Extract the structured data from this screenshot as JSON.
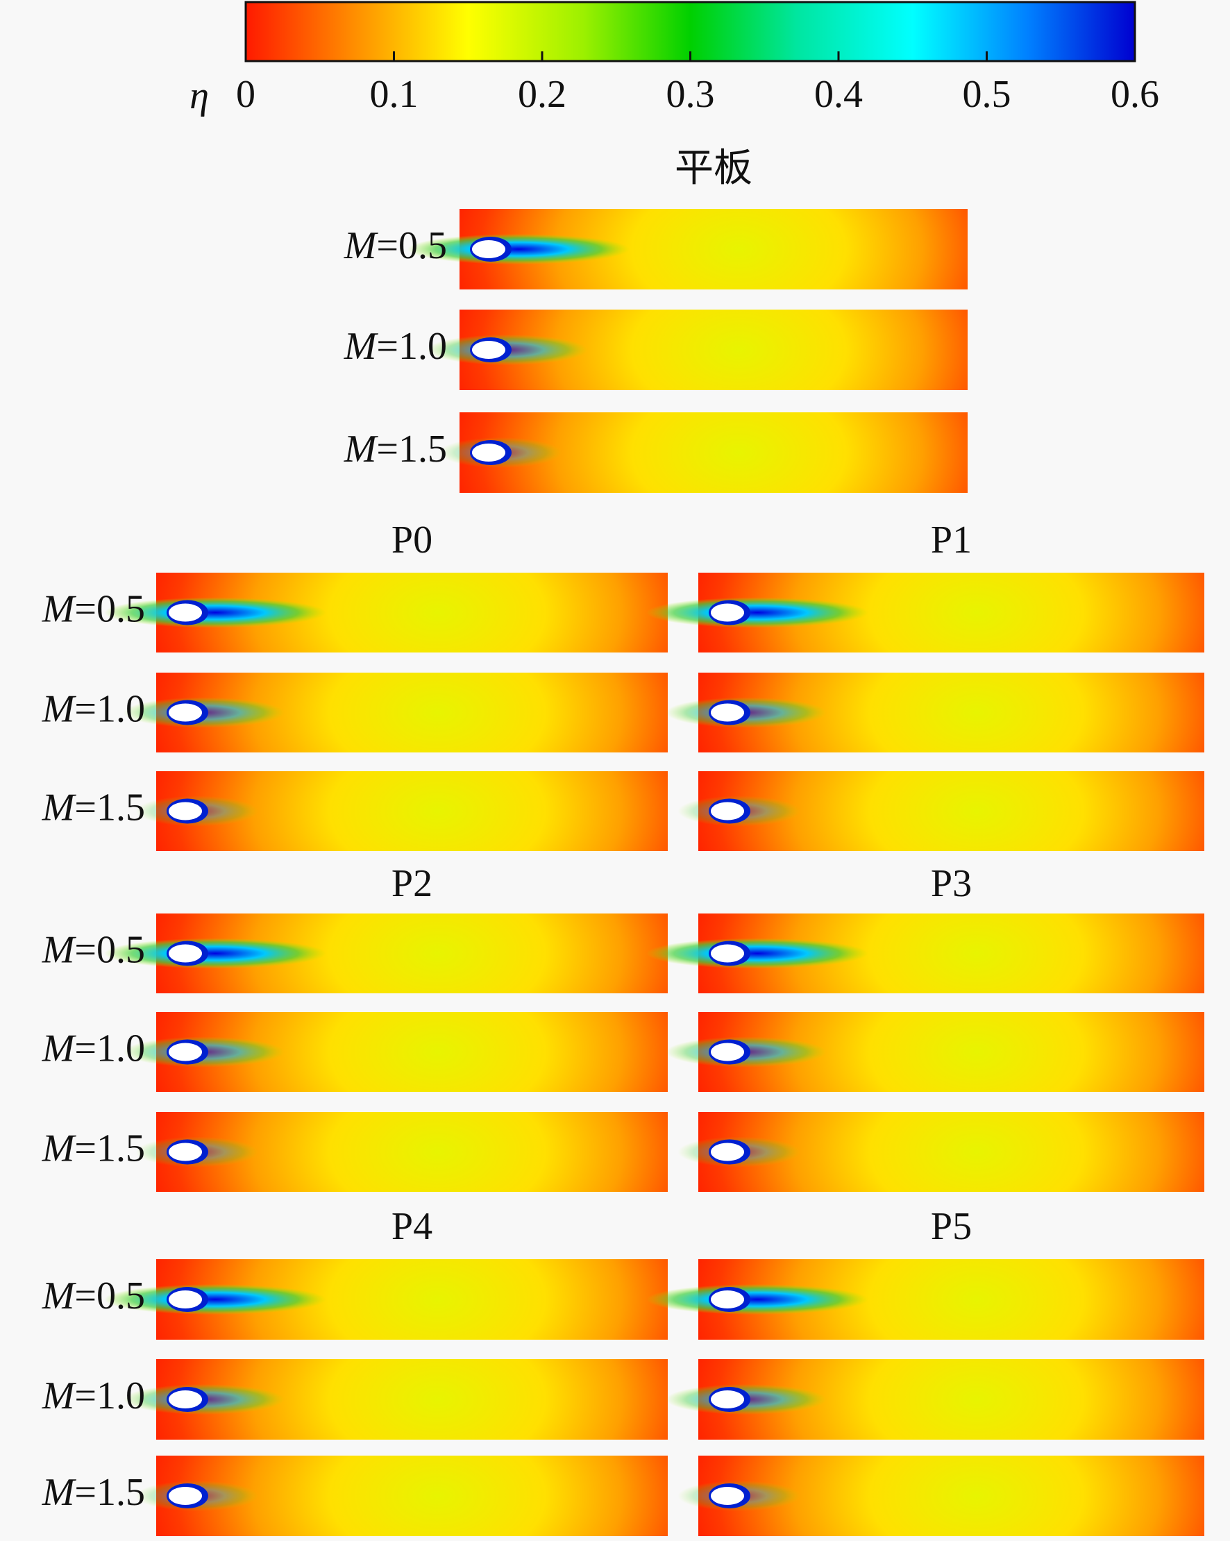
{
  "colorbar": {
    "label": "η",
    "lim": [
      0,
      0.6
    ],
    "ticks": [
      0,
      0.1,
      0.2,
      0.3,
      0.4,
      0.5,
      0.6
    ]
  },
  "panels": [
    {
      "title": "平板",
      "rows": [
        "M=0.5",
        "M=1.0",
        "M=1.5"
      ]
    },
    {
      "title": "P0",
      "rows": [
        "M=0.5",
        "M=1.0",
        "M=1.5"
      ]
    },
    {
      "title": "P1",
      "rows": [
        "M=0.5",
        "M=1.0",
        "M=1.5"
      ]
    },
    {
      "title": "P2",
      "rows": [
        "M=0.5",
        "M=1.0",
        "M=1.5"
      ]
    },
    {
      "title": "P3",
      "rows": [
        "M=0.5",
        "M=1.0",
        "M=1.5"
      ]
    },
    {
      "title": "P4",
      "rows": [
        "M=0.5",
        "M=1.0",
        "M=1.5"
      ]
    },
    {
      "title": "P5",
      "rows": [
        "M=0.5",
        "M=1.0",
        "M=1.5"
      ]
    }
  ]
}
